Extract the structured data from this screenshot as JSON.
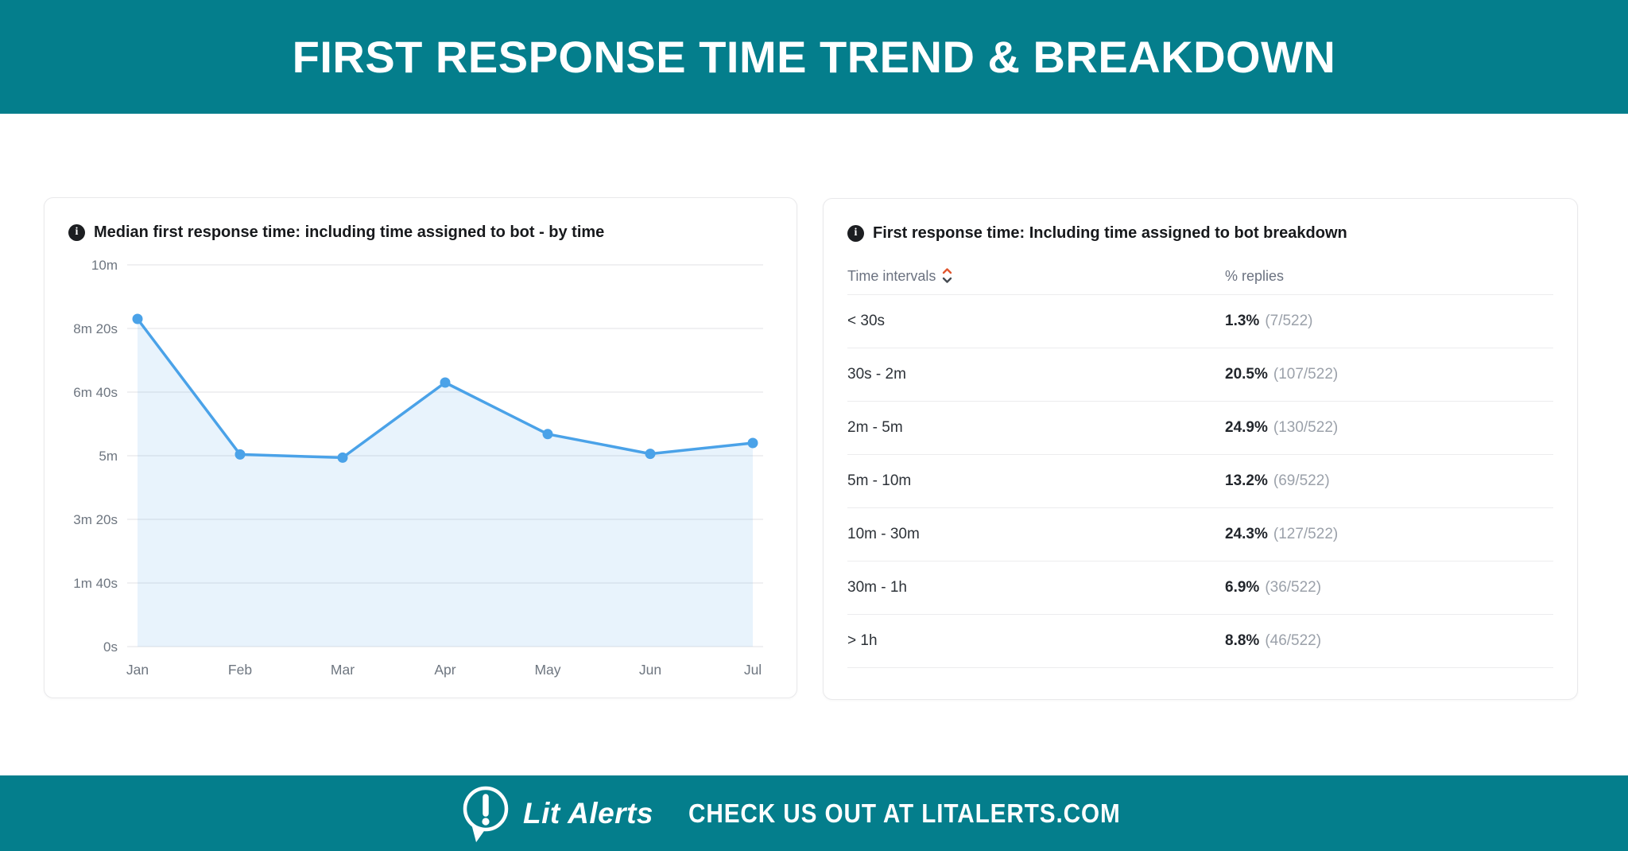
{
  "header": {
    "title": "FIRST RESPONSE TIME TREND & BREAKDOWN"
  },
  "colors": {
    "band_teal": "#047e8c",
    "line_blue": "#4aa2e8",
    "area_fill": "rgba(74,162,232,0.13)",
    "gridline": "#ececee",
    "axis_label": "#6e7680",
    "sort_up_arrow": "#e0572f",
    "sort_down_arrow": "#454b52"
  },
  "chart_card": {
    "title": "Median first response time: including time assigned to bot - by time"
  },
  "chart_data": {
    "type": "line",
    "title": "Median first response time: including time assigned to bot - by time",
    "x": [
      "Jan",
      "Feb",
      "Mar",
      "Apr",
      "May",
      "Jun",
      "Jul"
    ],
    "values_seconds": [
      515,
      302,
      297,
      415,
      334,
      303,
      320
    ],
    "y_tick_labels": [
      "0s",
      "1m 40s",
      "3m 20s",
      "5m",
      "6m 40s",
      "8m 20s",
      "10m"
    ],
    "y_tick_seconds": [
      0,
      100,
      200,
      300,
      400,
      500,
      600
    ],
    "ylim": [
      0,
      600
    ],
    "xlabel": "",
    "ylabel": "",
    "grid": true,
    "legend": false,
    "line_color": "#4aa2e8",
    "area_fill": "rgba(74,162,232,0.13)",
    "grid_color": "#ececee",
    "axis_label_color": "#6e7680"
  },
  "table_card": {
    "title": "First response time: Including time assigned to bot breakdown",
    "columns": {
      "intervals": "Time intervals",
      "replies": "% replies"
    },
    "rows": [
      {
        "interval": "< 30s",
        "percent": "1.3%",
        "fraction": "(7/522)"
      },
      {
        "interval": "30s - 2m",
        "percent": "20.5%",
        "fraction": "(107/522)"
      },
      {
        "interval": "2m - 5m",
        "percent": "24.9%",
        "fraction": "(130/522)"
      },
      {
        "interval": "5m - 10m",
        "percent": "13.2%",
        "fraction": "(69/522)"
      },
      {
        "interval": "10m - 30m",
        "percent": "24.3%",
        "fraction": "(127/522)"
      },
      {
        "interval": "30m - 1h",
        "percent": "6.9%",
        "fraction": "(36/522)"
      },
      {
        "interval": "> 1h",
        "percent": "8.8%",
        "fraction": "(46/522)"
      }
    ]
  },
  "footer": {
    "brand": "Lit Alerts",
    "tagline": "CHECK US OUT AT LITALERTS.COM"
  },
  "icons": {
    "info": "i"
  }
}
